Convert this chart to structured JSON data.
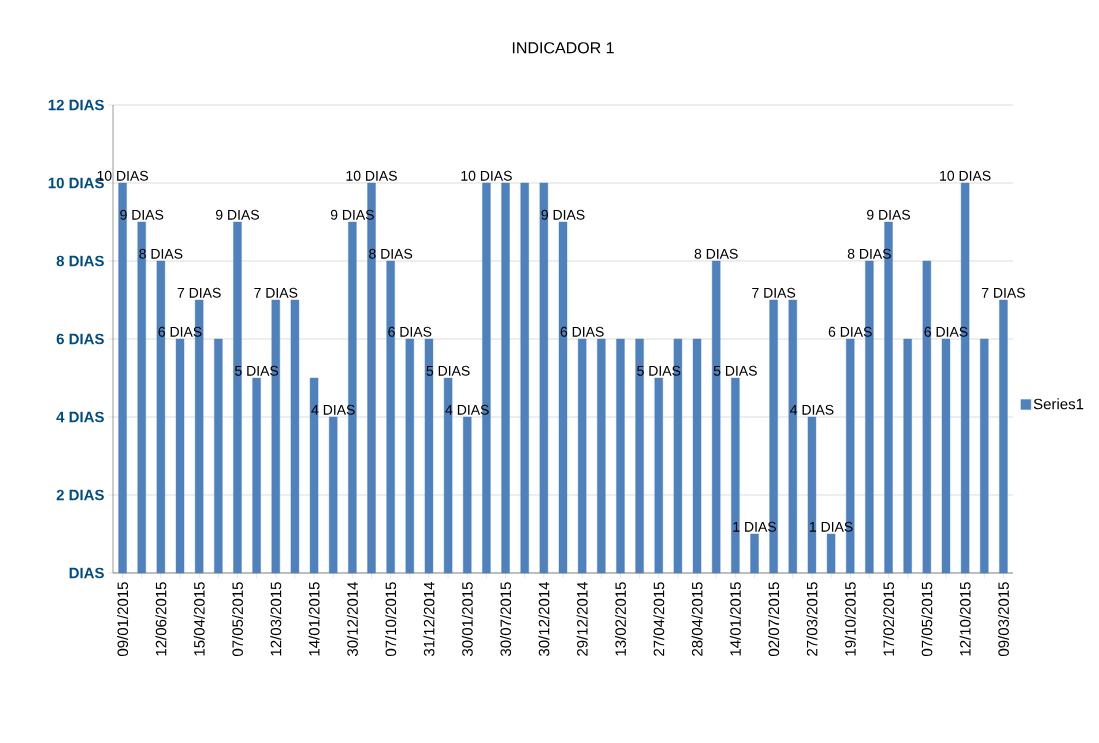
{
  "chart_data": {
    "type": "bar",
    "title": "INDICADOR 1",
    "categories": [
      "09/01/2015",
      null,
      "12/06/2015",
      null,
      "15/04/2015",
      null,
      "07/05/2015",
      null,
      "12/03/2015",
      null,
      "14/01/2015",
      null,
      "30/12/2014",
      null,
      "07/10/2015",
      null,
      "31/12/2014",
      null,
      "30/01/2015",
      null,
      "30/07/2015",
      null,
      "30/12/2014",
      null,
      "29/12/2014",
      null,
      "13/02/2015",
      null,
      "27/04/2015",
      null,
      "28/04/2015",
      null,
      "14/01/2015",
      null,
      "02/07/2015",
      null,
      "27/03/2015",
      null,
      "19/10/2015",
      null,
      "17/02/2015",
      null,
      "07/05/2015",
      null,
      "12/10/2015",
      null,
      "09/03/2015"
    ],
    "series": [
      {
        "name": "Series1",
        "color": "#4f81bd",
        "values": [
          10,
          9,
          8,
          6,
          7,
          6,
          9,
          5,
          7,
          7,
          5,
          4,
          9,
          10,
          8,
          6,
          6,
          5,
          4,
          10,
          10,
          10,
          10,
          9,
          6,
          6,
          6,
          6,
          5,
          6,
          6,
          8,
          5,
          1,
          7,
          7,
          4,
          1,
          6,
          8,
          9,
          6,
          8,
          6,
          10,
          6,
          7
        ],
        "value_labels": [
          "10 DIAS",
          "9 DIAS",
          "8 DIAS",
          "6 DIAS",
          "7 DIAS",
          null,
          "9 DIAS",
          "5 DIAS",
          "7 DIAS",
          null,
          null,
          "4 DIAS",
          "9 DIAS",
          "10 DIAS",
          "8 DIAS",
          "6 DIAS",
          null,
          "5 DIAS",
          "4 DIAS",
          "10 DIAS",
          null,
          null,
          null,
          "9 DIAS",
          "6 DIAS",
          null,
          null,
          null,
          "5 DIAS",
          null,
          null,
          "8 DIAS",
          "5 DIAS",
          "1 DIAS",
          "7 DIAS",
          null,
          "4 DIAS",
          "1 DIAS",
          "6 DIAS",
          "8 DIAS",
          "9 DIAS",
          null,
          null,
          "6 DIAS",
          "10 DIAS",
          null,
          "7 DIAS"
        ]
      }
    ],
    "ylim": [
      0,
      12
    ],
    "yticks": [
      {
        "value": 0,
        "label": "DIAS"
      },
      {
        "value": 2,
        "label": "2 DIAS"
      },
      {
        "value": 4,
        "label": "4 DIAS"
      },
      {
        "value": 6,
        "label": "6 DIAS"
      },
      {
        "value": 8,
        "label": "8 DIAS"
      },
      {
        "value": 10,
        "label": "10 DIAS"
      },
      {
        "value": 12,
        "label": "12 DIAS"
      }
    ],
    "grid": "y",
    "legend": "right"
  }
}
